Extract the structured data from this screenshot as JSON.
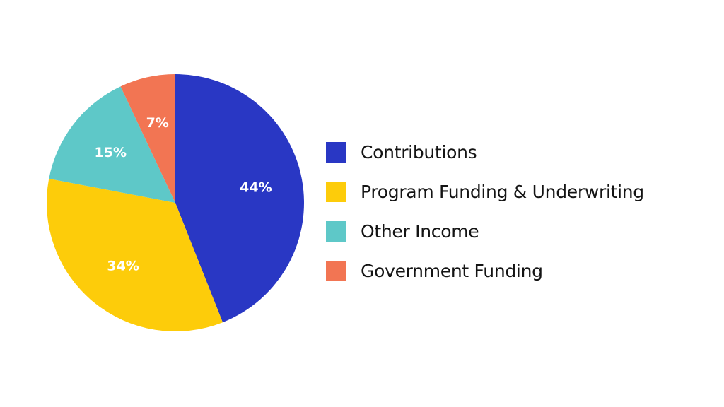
{
  "chart_data": {
    "type": "pie",
    "title": "",
    "slices": [
      {
        "name": "Contributions",
        "value": 44,
        "label": "44%",
        "color": "#2937c4"
      },
      {
        "name": "Program Funding & Underwriting",
        "value": 34,
        "label": "34%",
        "color": "#fdcc0a"
      },
      {
        "name": "Other Income",
        "value": 15,
        "label": "15%",
        "color": "#5ec8c8"
      },
      {
        "name": "Government Funding",
        "value": 7,
        "label": "7%",
        "color": "#f27553"
      }
    ],
    "start_angle": "12 o'clock",
    "direction": "clockwise",
    "legend_position": "right"
  }
}
